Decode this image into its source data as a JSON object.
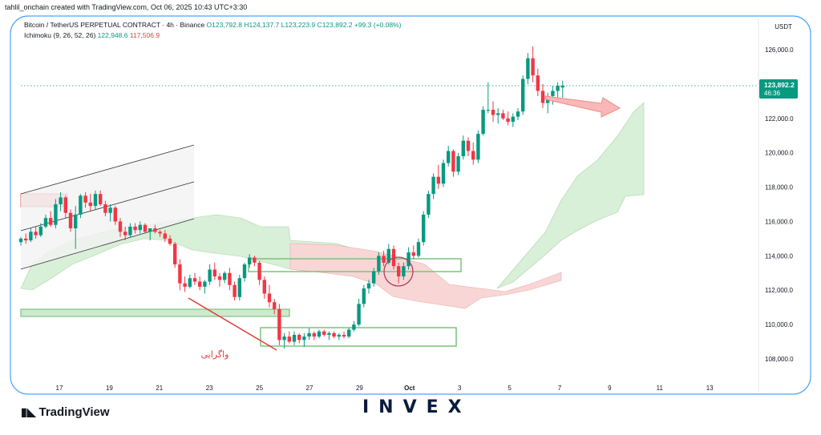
{
  "header": {
    "watermark": "tahlil_onchain created with TradingView.com, Oct 06, 2025 10:43 UTC+3:30",
    "symbol": "Bitcoin / TetherUS PERPETUAL CONTRACT · 4h · Binance",
    "ohlc": "O123,792.8 H124,137.7 L123,223.9 C123,892.2 +99.3 (+0.08%)",
    "indicator_name": "Ichimoku (9, 26, 52, 26)",
    "indicator_val_green": "122,948.6",
    "indicator_val_red": "117,506.9"
  },
  "chart_data": {
    "type": "candlestick",
    "currency_label": "USDT",
    "y_ticks": [
      "126,000.0",
      "124,000.0",
      "122,000.0",
      "120,000.0",
      "118,000.0",
      "116,000.0",
      "114,000.0",
      "112,000.0",
      "110,000.0",
      "108,000.0"
    ],
    "x_ticks": [
      "17",
      "19",
      "21",
      "23",
      "25",
      "27",
      "29",
      "Oct",
      "3",
      "5",
      "7",
      "9",
      "11",
      "13"
    ],
    "ylim": [
      107500,
      127000
    ],
    "last_price": "123,892.2",
    "countdown": "46:36",
    "annotation": "واگرایی",
    "colors": {
      "up": "#089981",
      "down": "#f23645",
      "cloud_green": "#d8efd8",
      "cloud_red": "#f8d6d6",
      "zone": "#7cc47c"
    },
    "candles": [
      [
        114.8,
        115.1,
        114.6,
        115.0
      ],
      [
        115.0,
        115.3,
        114.7,
        114.9
      ],
      [
        114.9,
        115.6,
        114.8,
        115.4
      ],
      [
        115.4,
        115.7,
        115.0,
        115.2
      ],
      [
        115.2,
        115.9,
        115.1,
        115.7
      ],
      [
        115.7,
        116.4,
        115.6,
        116.2
      ],
      [
        116.2,
        116.6,
        115.7,
        115.8
      ],
      [
        115.8,
        117.3,
        115.6,
        117.0
      ],
      [
        117.0,
        117.7,
        116.6,
        117.4
      ],
      [
        117.4,
        117.5,
        116.2,
        116.5
      ],
      [
        116.5,
        116.7,
        115.4,
        115.6
      ],
      [
        115.6,
        116.9,
        114.4,
        116.4
      ],
      [
        116.4,
        117.6,
        116.2,
        117.5
      ],
      [
        117.5,
        117.7,
        116.8,
        117.1
      ],
      [
        117.1,
        117.6,
        116.6,
        116.9
      ],
      [
        116.9,
        117.8,
        116.7,
        117.6
      ],
      [
        117.6,
        117.8,
        116.9,
        117.0
      ],
      [
        117.0,
        117.2,
        116.3,
        116.5
      ],
      [
        116.5,
        117.0,
        116.0,
        116.8
      ],
      [
        116.8,
        116.9,
        115.8,
        116.0
      ],
      [
        116.0,
        116.2,
        115.1,
        115.4
      ],
      [
        115.4,
        115.7,
        114.9,
        115.2
      ],
      [
        115.2,
        115.9,
        115.1,
        115.7
      ],
      [
        115.7,
        115.9,
        115.3,
        115.5
      ],
      [
        115.5,
        116.0,
        115.3,
        115.8
      ],
      [
        115.8,
        115.9,
        115.3,
        115.4
      ],
      [
        115.4,
        115.6,
        114.9,
        115.6
      ],
      [
        115.6,
        115.8,
        115.3,
        115.4
      ],
      [
        115.4,
        115.5,
        115.1,
        115.3
      ],
      [
        115.3,
        115.5,
        114.8,
        115.0
      ],
      [
        115.0,
        115.2,
        114.6,
        114.7
      ],
      [
        114.7,
        114.8,
        113.3,
        113.5
      ],
      [
        113.5,
        113.8,
        112.0,
        112.4
      ],
      [
        112.4,
        112.8,
        111.9,
        112.2
      ],
      [
        112.2,
        112.9,
        112.1,
        112.7
      ],
      [
        112.7,
        113.0,
        112.3,
        112.5
      ],
      [
        112.5,
        112.8,
        112.0,
        112.2
      ],
      [
        112.2,
        112.6,
        111.8,
        112.5
      ],
      [
        112.5,
        113.5,
        112.3,
        113.2
      ],
      [
        113.2,
        113.6,
        112.6,
        112.8
      ],
      [
        112.8,
        113.0,
        112.2,
        112.6
      ],
      [
        112.6,
        113.1,
        112.4,
        113.0
      ],
      [
        113.0,
        113.3,
        112.0,
        112.3
      ],
      [
        112.3,
        112.5,
        111.4,
        111.6
      ],
      [
        111.6,
        112.9,
        111.4,
        112.7
      ],
      [
        112.7,
        113.6,
        112.5,
        113.5
      ],
      [
        113.5,
        114.1,
        113.3,
        113.9
      ],
      [
        113.9,
        114.0,
        113.4,
        113.6
      ],
      [
        113.6,
        113.7,
        112.3,
        112.6
      ],
      [
        112.6,
        112.8,
        111.5,
        111.8
      ],
      [
        111.8,
        112.3,
        111.0,
        111.3
      ],
      [
        111.3,
        111.5,
        110.6,
        110.9
      ],
      [
        110.9,
        111.2,
        108.8,
        109.1
      ],
      [
        109.1,
        109.5,
        108.6,
        109.3
      ],
      [
        109.3,
        109.6,
        108.9,
        109.0
      ],
      [
        109.0,
        109.6,
        108.8,
        109.4
      ],
      [
        109.4,
        109.5,
        108.9,
        109.1
      ],
      [
        109.1,
        109.5,
        108.7,
        109.3
      ],
      [
        109.3,
        109.8,
        109.1,
        109.5
      ],
      [
        109.5,
        109.6,
        109.1,
        109.3
      ],
      [
        109.3,
        109.7,
        109.2,
        109.6
      ],
      [
        109.6,
        109.7,
        109.3,
        109.4
      ],
      [
        109.4,
        109.6,
        109.1,
        109.5
      ],
      [
        109.5,
        109.6,
        109.2,
        109.3
      ],
      [
        109.3,
        109.5,
        109.1,
        109.4
      ],
      [
        109.4,
        109.6,
        109.2,
        109.3
      ],
      [
        109.3,
        109.8,
        109.2,
        109.7
      ],
      [
        109.7,
        110.2,
        109.6,
        110.0
      ],
      [
        110.0,
        111.5,
        109.9,
        111.2
      ],
      [
        111.2,
        112.3,
        111.0,
        112.1
      ],
      [
        112.1,
        112.6,
        111.8,
        112.4
      ],
      [
        112.4,
        113.3,
        112.2,
        113.1
      ],
      [
        113.1,
        114.2,
        112.9,
        114.0
      ],
      [
        114.0,
        114.3,
        113.4,
        113.6
      ],
      [
        113.6,
        114.7,
        113.5,
        114.4
      ],
      [
        114.4,
        114.6,
        113.2,
        113.4
      ],
      [
        113.4,
        113.6,
        112.4,
        112.8
      ],
      [
        112.8,
        113.6,
        112.6,
        113.4
      ],
      [
        113.4,
        114.5,
        113.2,
        114.2
      ],
      [
        114.2,
        114.6,
        113.8,
        114.0
      ],
      [
        114.0,
        115.0,
        113.9,
        114.8
      ],
      [
        114.8,
        116.6,
        114.6,
        116.4
      ],
      [
        116.4,
        117.8,
        116.2,
        117.6
      ],
      [
        117.6,
        118.8,
        117.3,
        118.6
      ],
      [
        118.6,
        119.3,
        117.9,
        118.2
      ],
      [
        118.2,
        119.6,
        118.0,
        119.4
      ],
      [
        119.4,
        120.4,
        119.2,
        120.1
      ],
      [
        120.1,
        120.2,
        118.6,
        118.9
      ],
      [
        118.9,
        120.0,
        118.7,
        119.8
      ],
      [
        119.8,
        121.0,
        119.6,
        120.7
      ],
      [
        120.7,
        120.9,
        119.8,
        120.1
      ],
      [
        120.1,
        120.6,
        119.3,
        119.6
      ],
      [
        119.6,
        121.3,
        119.4,
        121.1
      ],
      [
        121.1,
        122.7,
        121.0,
        122.5
      ],
      [
        122.5,
        124.1,
        122.3,
        122.5
      ],
      [
        122.5,
        123.0,
        121.8,
        122.2
      ],
      [
        122.2,
        122.6,
        121.7,
        122.3
      ],
      [
        122.3,
        122.5,
        121.9,
        122.0
      ],
      [
        122.0,
        122.4,
        121.6,
        121.8
      ],
      [
        121.8,
        122.3,
        121.5,
        122.1
      ],
      [
        122.1,
        122.6,
        121.9,
        122.4
      ],
      [
        122.4,
        124.5,
        122.2,
        124.3
      ],
      [
        124.3,
        125.8,
        124.0,
        125.5
      ],
      [
        125.5,
        126.2,
        124.1,
        124.5
      ],
      [
        124.5,
        124.9,
        123.3,
        123.6
      ],
      [
        123.6,
        124.0,
        122.6,
        122.9
      ],
      [
        122.9,
        123.5,
        122.3,
        123.3
      ],
      [
        123.3,
        123.9,
        122.8,
        123.6
      ],
      [
        123.6,
        124.1,
        123.2,
        123.9
      ],
      [
        123.8,
        124.2,
        123.2,
        123.9
      ]
    ]
  }
}
